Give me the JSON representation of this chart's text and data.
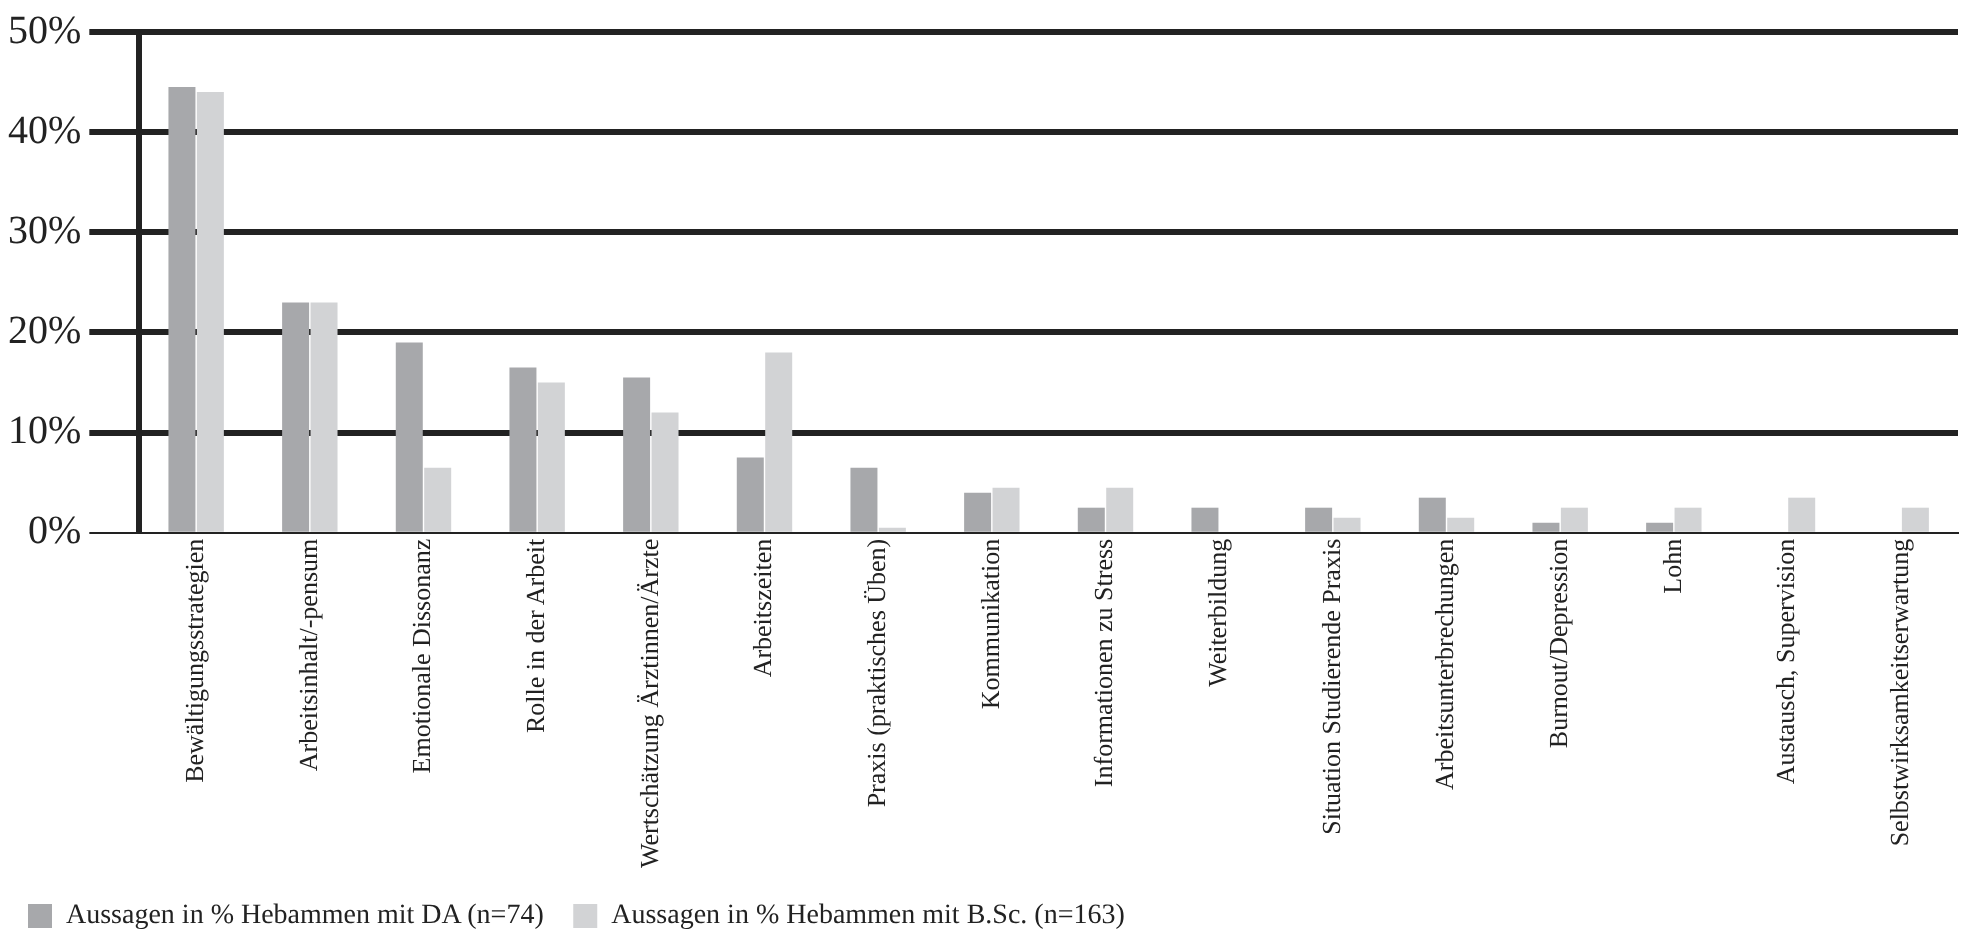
{
  "chart_data": {
    "type": "bar",
    "categories": [
      "Bewältigungsstrategien",
      "Arbeitsinhalt/-pensum",
      "Emotionale Dissonanz",
      "Rolle in der Arbeit",
      "Wertschätzung Ärztinnen/Ärzte",
      "Arbeitszeiten",
      "Praxis (praktisches Üben)",
      "Kommunikation",
      "Informationen zu Stress",
      "Weiterbildung",
      "Situation Studierende Praxis",
      "Arbeitsunterbrechungen",
      "Burnout/Depression",
      "Lohn",
      "Austausch, Supervision",
      "Selbstwirksamkeitserwartung"
    ],
    "series": [
      {
        "name": "Aussagen in % Hebammen mit DA (n=74)",
        "color": "#a7a8ab",
        "values": [
          44.5,
          23,
          19,
          16.5,
          15.5,
          7.5,
          6.5,
          4,
          2.5,
          2.5,
          2.5,
          3.5,
          1,
          1,
          0,
          0
        ]
      },
      {
        "name": "Aussagen in % Hebammen mit B.Sc. (n=163)",
        "color": "#d2d3d5",
        "values": [
          44,
          23,
          6.5,
          15,
          12,
          18,
          0.5,
          4.5,
          4.5,
          0,
          1.5,
          1.5,
          2.5,
          2.5,
          3.5,
          2.5
        ]
      }
    ],
    "ylim": [
      0,
      50
    ],
    "yticks": [
      {
        "value": 0,
        "label": "0%"
      },
      {
        "value": 10,
        "label": "10%"
      },
      {
        "value": 20,
        "label": "20%"
      },
      {
        "value": 30,
        "label": "30%"
      },
      {
        "value": 40,
        "label": "40%"
      },
      {
        "value": 50,
        "label": "50%"
      }
    ],
    "grid": "y",
    "legend": "bottom"
  }
}
